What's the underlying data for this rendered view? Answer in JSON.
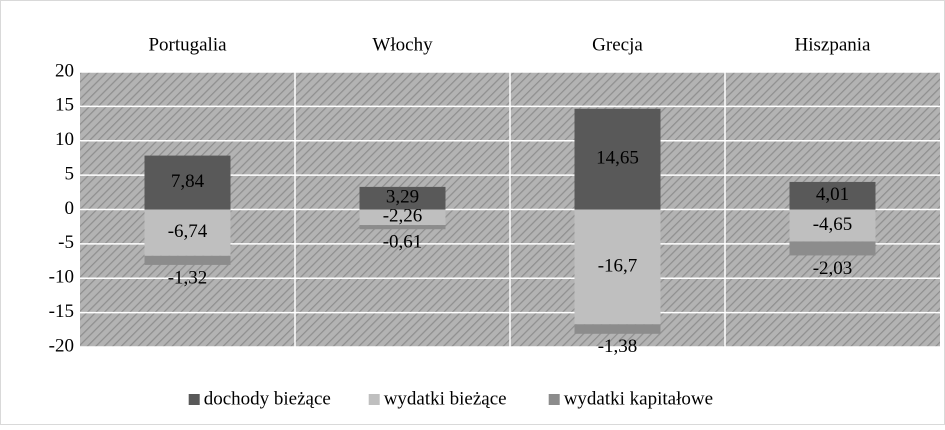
{
  "chart_data": {
    "type": "stacked_bar",
    "categories": [
      "Portugalia",
      "Włochy",
      "Grecja",
      "Hiszpania"
    ],
    "series": [
      {
        "name": "dochody bieżące",
        "color": "#595959",
        "values": [
          7.84,
          3.29,
          14.65,
          4.01
        ],
        "value_labels": [
          "7,84",
          "3,29",
          "14,65",
          "4,01"
        ]
      },
      {
        "name": "wydatki bieżące",
        "color": "#bfbfbf",
        "values": [
          -6.74,
          -2.26,
          -16.7,
          -4.65
        ],
        "value_labels": [
          "-6,74",
          "-2,26",
          "-16,7",
          "-4,65"
        ]
      },
      {
        "name": "wydatki kapitałowe",
        "color": "#8c8c8c",
        "values": [
          -1.32,
          -0.61,
          -1.38,
          -2.03
        ],
        "value_labels": [
          "-1,32",
          "-0,61",
          "-1,38",
          "-2,03"
        ]
      }
    ],
    "ylim": [
      -20,
      20
    ],
    "yticks": [
      -20,
      -15,
      -10,
      -5,
      0,
      5,
      10,
      15,
      20
    ],
    "grid": true,
    "legend": "bottom"
  }
}
